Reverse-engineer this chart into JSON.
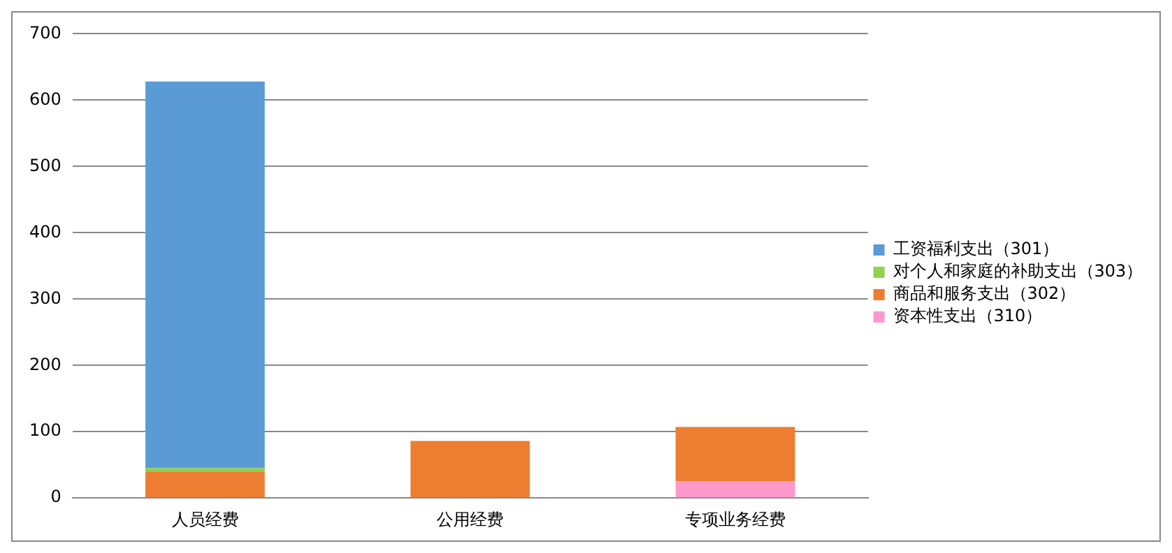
{
  "chart_data": {
    "type": "bar",
    "stacked": true,
    "categories": [
      "人员经费",
      "公用经费",
      "专项业务经费"
    ],
    "series": [
      {
        "name": "资本性支出（310）",
        "color": "#ff99cc",
        "values": [
          null,
          null,
          25
        ]
      },
      {
        "name": "商品和服务支出（302）",
        "color": "#ed7d31",
        "values": [
          40,
          86,
          82
        ]
      },
      {
        "name": "对个人和家庭的补助支出（303）",
        "color": "#92d050",
        "values": [
          5,
          null,
          null
        ]
      },
      {
        "name": "工资福利支出（301）",
        "color": "#5b9bd5",
        "values": [
          583,
          null,
          null
        ]
      }
    ],
    "ylim": [
      0,
      700
    ],
    "yticks": [
      0,
      100,
      200,
      300,
      400,
      500,
      600,
      700
    ],
    "grid": "y",
    "legend": "right"
  }
}
